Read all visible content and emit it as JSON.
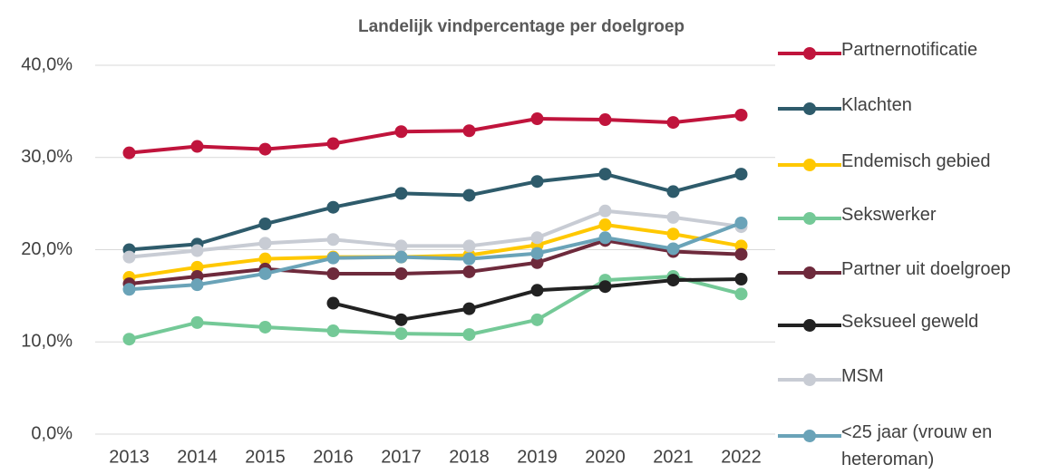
{
  "chart_data": {
    "type": "line",
    "title": "Landelijk vindpercentage per doelgroep",
    "categories": [
      "2013",
      "2014",
      "2015",
      "2016",
      "2017",
      "2018",
      "2019",
      "2020",
      "2021",
      "2022"
    ],
    "ylim": [
      0,
      40
    ],
    "yticks": [
      {
        "value": 0,
        "label": "0,0%"
      },
      {
        "value": 10,
        "label": "10,0%"
      },
      {
        "value": 20,
        "label": "20,0%"
      },
      {
        "value": 30,
        "label": "30,0%"
      },
      {
        "value": 40,
        "label": "40,0%"
      }
    ],
    "grid": true,
    "legend": "right",
    "series": [
      {
        "name": "Partnernotificatie",
        "color": "#c0143c",
        "values": [
          30.5,
          31.2,
          30.9,
          31.5,
          32.8,
          32.9,
          34.2,
          34.1,
          33.8,
          34.6
        ]
      },
      {
        "name": "Klachten",
        "color": "#2e5b6b",
        "values": [
          20.0,
          20.6,
          22.8,
          24.6,
          26.1,
          25.9,
          27.4,
          28.2,
          26.3,
          28.2
        ]
      },
      {
        "name": "Endemisch gebied",
        "color": "#ffc800",
        "values": [
          17.0,
          18.1,
          19.0,
          19.2,
          19.2,
          19.4,
          20.5,
          22.7,
          21.7,
          20.4
        ]
      },
      {
        "name": "Sekswerker",
        "color": "#74c997",
        "values": [
          10.3,
          12.1,
          11.6,
          11.2,
          10.9,
          10.8,
          12.4,
          16.7,
          17.1,
          15.2
        ]
      },
      {
        "name": "Partner uit doelgroep",
        "color": "#6e2a3c",
        "values": [
          16.3,
          17.1,
          17.9,
          17.4,
          17.4,
          17.6,
          18.6,
          21.0,
          19.8,
          19.5
        ]
      },
      {
        "name": "Seksueel geweld",
        "color": "#222222",
        "values": [
          null,
          null,
          null,
          14.2,
          12.4,
          13.6,
          15.6,
          16.0,
          16.7,
          16.8
        ]
      },
      {
        "name": "MSM",
        "color": "#c8ccd4",
        "values": [
          19.2,
          19.9,
          20.7,
          21.1,
          20.4,
          20.4,
          21.3,
          24.2,
          23.5,
          22.5
        ]
      },
      {
        "name": "<25 jaar (vrouw en heteroman)",
        "color": "#6aa3b8",
        "values": [
          15.7,
          16.2,
          17.4,
          19.1,
          19.2,
          19.0,
          19.6,
          21.3,
          20.1,
          22.9
        ]
      }
    ]
  }
}
